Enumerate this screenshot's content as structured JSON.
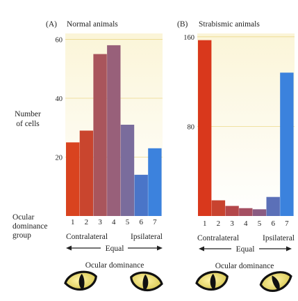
{
  "figure": {
    "y_axis_label_line1": "Number",
    "y_axis_label_line2": "of cells",
    "x_axis_label_line1": "Ocular",
    "x_axis_label_line2": "dominance",
    "x_axis_label_line3": "group"
  },
  "chart_data": [
    {
      "type": "bar",
      "panel_letter": "(A)",
      "title": "Normal animals",
      "categories": [
        "1",
        "2",
        "3",
        "4",
        "5",
        "6",
        "7"
      ],
      "values": [
        25,
        29,
        55,
        58,
        31,
        14,
        23
      ],
      "yticks": [
        20,
        40,
        60
      ],
      "ylim": [
        0,
        62
      ],
      "grid": true,
      "bar_colors": [
        "#d9431f",
        "#c9452e",
        "#a9555c",
        "#98607a",
        "#7a6c9c",
        "#4a75c8",
        "#3c82dd"
      ],
      "left_label": "Contralateral",
      "right_label": "Ipsilateral",
      "equal_label": "Equal",
      "footer_label": "Ocular dominance"
    },
    {
      "type": "bar",
      "panel_letter": "(B)",
      "title": "Strabismic animals",
      "categories": [
        "1",
        "2",
        "3",
        "4",
        "5",
        "6",
        "7"
      ],
      "values": [
        157,
        14,
        9,
        7,
        6,
        17,
        128
      ],
      "yticks": [
        80,
        160
      ],
      "ylim": [
        0,
        163
      ],
      "grid": true,
      "bar_colors": [
        "#d9381c",
        "#c8432f",
        "#b4474a",
        "#a54f62",
        "#8a5b82",
        "#5b70b8",
        "#3b82dd"
      ],
      "left_label": "Contralateral",
      "right_label": "Ipsilateral",
      "equal_label": "Equal",
      "footer_label": "Ocular dominance"
    }
  ]
}
